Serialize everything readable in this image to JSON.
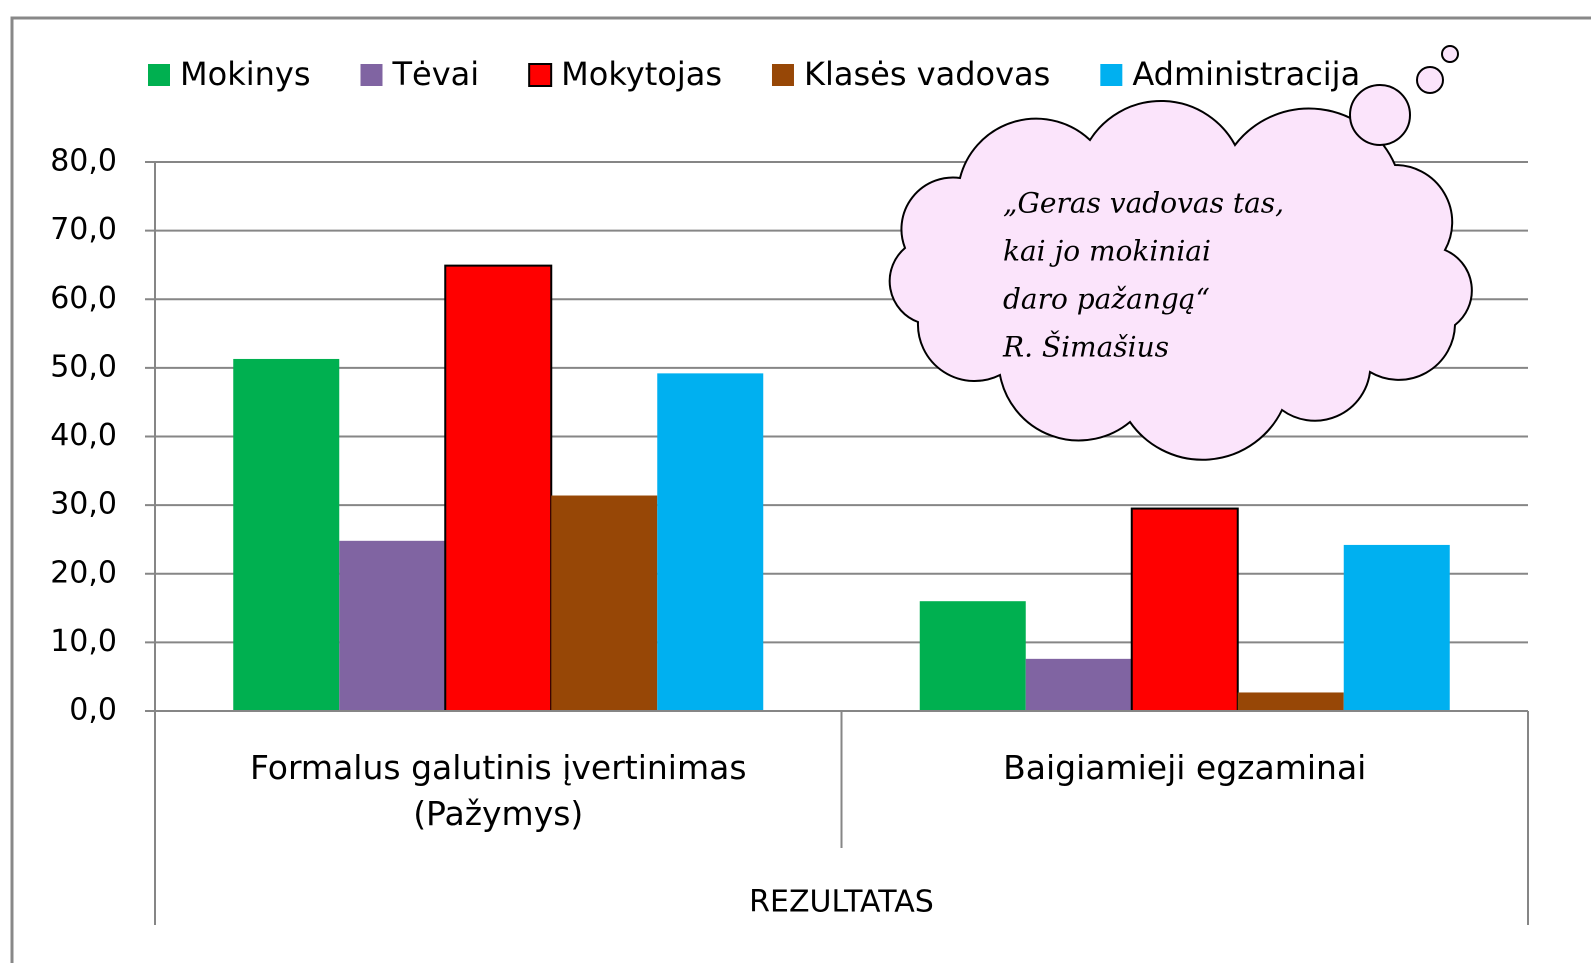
{
  "chart_data": {
    "type": "bar",
    "categories": [
      "Formalus galutinis įvertinimas (Pažymys)",
      "Baigiamieji egzaminai"
    ],
    "group_label": "REZULTATAS",
    "series": [
      {
        "name": "Mokinys",
        "color": "#00b050",
        "values": [
          51.3,
          16.0
        ]
      },
      {
        "name": "Tėvai",
        "color": "#8064a2",
        "values": [
          24.8,
          7.6
        ]
      },
      {
        "name": "Mokytojas",
        "color": "#ff0000",
        "edgecolor": "#000000",
        "values": [
          64.9,
          29.5
        ]
      },
      {
        "name": "Klasės vadovas",
        "color": "#974706",
        "values": [
          31.4,
          2.7
        ]
      },
      {
        "name": "Administracija",
        "color": "#00b0f0",
        "values": [
          49.2,
          24.2
        ]
      }
    ],
    "ylim": [
      0,
      80
    ],
    "yticks": [
      {
        "value": 0,
        "label": "0,0"
      },
      {
        "value": 10,
        "label": "10,0"
      },
      {
        "value": 20,
        "label": "20,0"
      },
      {
        "value": 30,
        "label": "30,0"
      },
      {
        "value": 40,
        "label": "40,0"
      },
      {
        "value": 50,
        "label": "50,0"
      },
      {
        "value": 60,
        "label": "60,0"
      },
      {
        "value": 70,
        "label": "70,0"
      },
      {
        "value": 80,
        "label": "80,0"
      }
    ],
    "grid": true,
    "legend_position": "top",
    "annotation": [
      "„Geras vadovas tas,",
      "kai jo mokiniai",
      "daro pažangą“",
      "R. Šimašius"
    ]
  }
}
